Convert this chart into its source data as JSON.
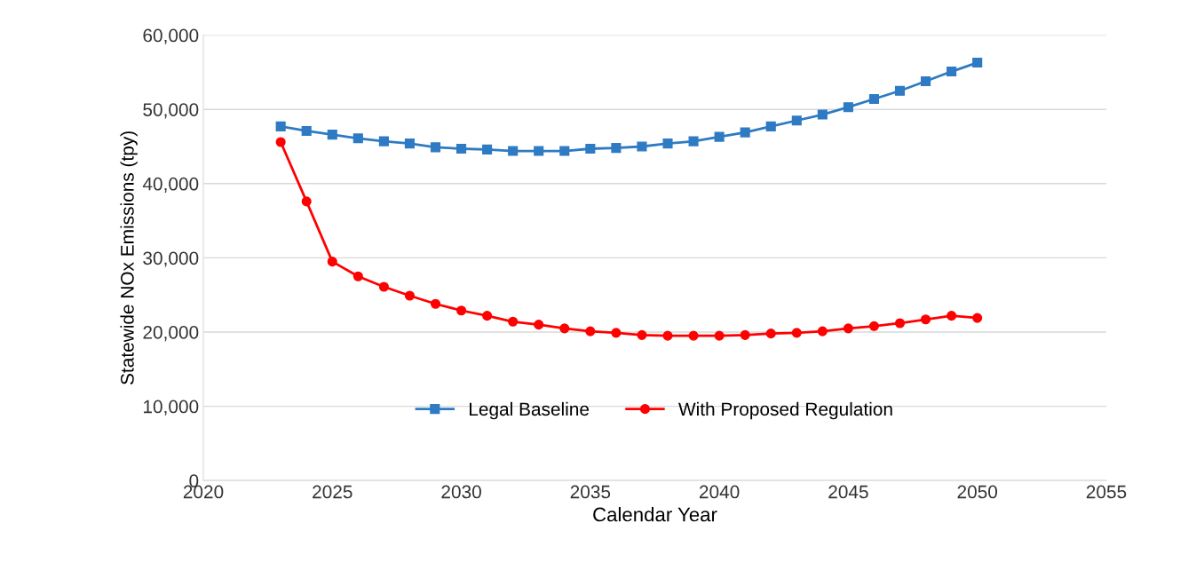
{
  "chart_data": {
    "type": "line",
    "xlabel": "Calendar Year",
    "ylabel": "Statewide NOx Emissions (tpy)",
    "x": [
      2023,
      2024,
      2025,
      2026,
      2027,
      2028,
      2029,
      2030,
      2031,
      2032,
      2033,
      2034,
      2035,
      2036,
      2037,
      2038,
      2039,
      2040,
      2041,
      2042,
      2043,
      2044,
      2045,
      2046,
      2047,
      2048,
      2049,
      2050
    ],
    "series": [
      {
        "name": "Legal Baseline",
        "color": "#2e7bc4",
        "marker": "square",
        "values": [
          47700,
          47100,
          46600,
          46100,
          45700,
          45400,
          44900,
          44700,
          44600,
          44400,
          44400,
          44400,
          44700,
          44800,
          45000,
          45400,
          45700,
          46300,
          46900,
          47700,
          48500,
          49300,
          50300,
          51400,
          52500,
          53800,
          55100,
          56300
        ]
      },
      {
        "name": "With Proposed Regulation",
        "color": "#ff0000",
        "marker": "circle",
        "values": [
          45600,
          37600,
          29500,
          27500,
          26100,
          24900,
          23800,
          22900,
          22200,
          21400,
          21000,
          20500,
          20100,
          19900,
          19600,
          19500,
          19500,
          19500,
          19600,
          19800,
          19900,
          20100,
          20500,
          20800,
          21200,
          21700,
          22200,
          21900
        ]
      }
    ],
    "xlim": [
      2020,
      2055
    ],
    "xticks": [
      2020,
      2025,
      2030,
      2035,
      2040,
      2045,
      2050,
      2055
    ],
    "ylim": [
      0,
      60000
    ],
    "yticks": [
      {
        "value": 0,
        "label": "0"
      },
      {
        "value": 10000,
        "label": "10,000"
      },
      {
        "value": 20000,
        "label": "20,000"
      },
      {
        "value": 30000,
        "label": "30,000"
      },
      {
        "value": 40000,
        "label": "40,000"
      },
      {
        "value": 50000,
        "label": "50,000"
      },
      {
        "value": 60000,
        "label": "60,000"
      }
    ],
    "grid": "y",
    "legend": "bottom",
    "line_style": "solid"
  }
}
